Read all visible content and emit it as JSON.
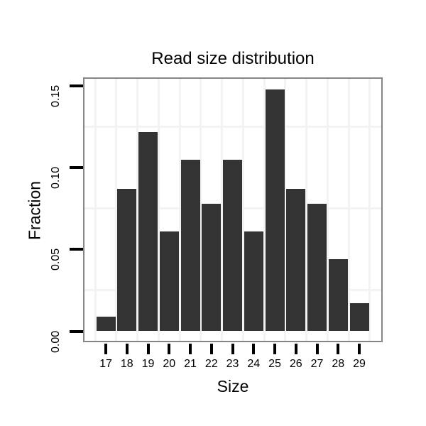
{
  "page": {
    "background": "#ffffff"
  },
  "chart_data": {
    "type": "bar",
    "title": "Read size distribution",
    "xlabel": "Size",
    "ylabel": "Fraction",
    "categories": [
      17,
      18,
      19,
      20,
      21,
      22,
      23,
      24,
      25,
      26,
      27,
      28,
      29
    ],
    "values": [
      0.009,
      0.087,
      0.122,
      0.061,
      0.105,
      0.078,
      0.105,
      0.061,
      0.148,
      0.087,
      0.078,
      0.044,
      0.017
    ],
    "x_tick_labels": [
      "17",
      "18",
      "19",
      "20",
      "21",
      "22",
      "23",
      "24",
      "25",
      "26",
      "27",
      "28",
      "29"
    ],
    "y_ticks": [
      {
        "value": 0.0,
        "label": "0.00"
      },
      {
        "value": 0.05,
        "label": "0.05"
      },
      {
        "value": 0.1,
        "label": "0.10"
      },
      {
        "value": 0.15,
        "label": "0.15"
      }
    ],
    "minor_y_gridlines": [
      0.025,
      0.075,
      0.125
    ],
    "minor_x_gridlines": [
      16.5,
      17.5,
      18.5,
      19.5,
      20.5,
      21.5,
      22.5,
      23.5,
      24.5,
      25.5,
      26.5,
      27.5,
      28.5,
      29.5
    ],
    "xlim": [
      16,
      30
    ],
    "ylim": [
      -0.006,
      0.154
    ],
    "grid": "minor-only",
    "legend": "none",
    "colors": {
      "bar": "#333333",
      "panel_border": "#868686",
      "gridline": "#f3f3f3",
      "tick": "#000000",
      "text": "#000000",
      "background": "#ffffff"
    }
  }
}
